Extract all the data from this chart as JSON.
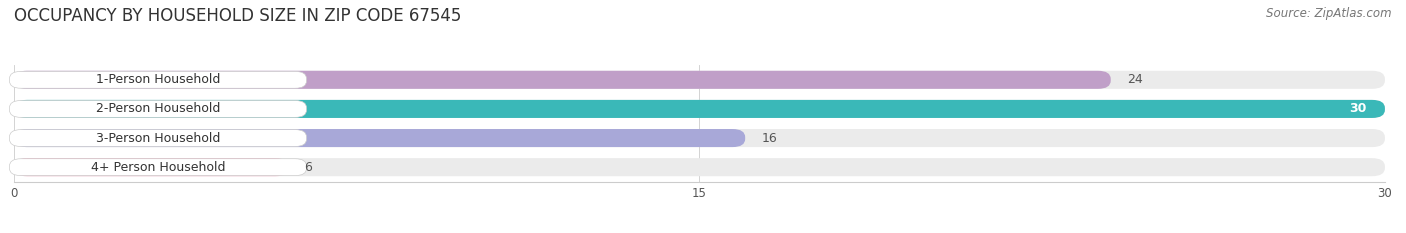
{
  "title": "OCCUPANCY BY HOUSEHOLD SIZE IN ZIP CODE 67545",
  "source": "Source: ZipAtlas.com",
  "categories": [
    "1-Person Household",
    "2-Person Household",
    "3-Person Household",
    "4+ Person Household"
  ],
  "values": [
    24,
    30,
    16,
    6
  ],
  "colors": [
    "#c09fc8",
    "#3ab8b8",
    "#a8a8d8",
    "#f4a8be"
  ],
  "bar_bg_color": "#ebebeb",
  "xlim": [
    0,
    30
  ],
  "xticks": [
    0,
    15,
    30
  ],
  "label_fontsize": 9,
  "value_fontsize": 9,
  "title_fontsize": 12,
  "source_fontsize": 8.5,
  "bar_height": 0.62,
  "figsize": [
    14.06,
    2.33
  ],
  "dpi": 100
}
